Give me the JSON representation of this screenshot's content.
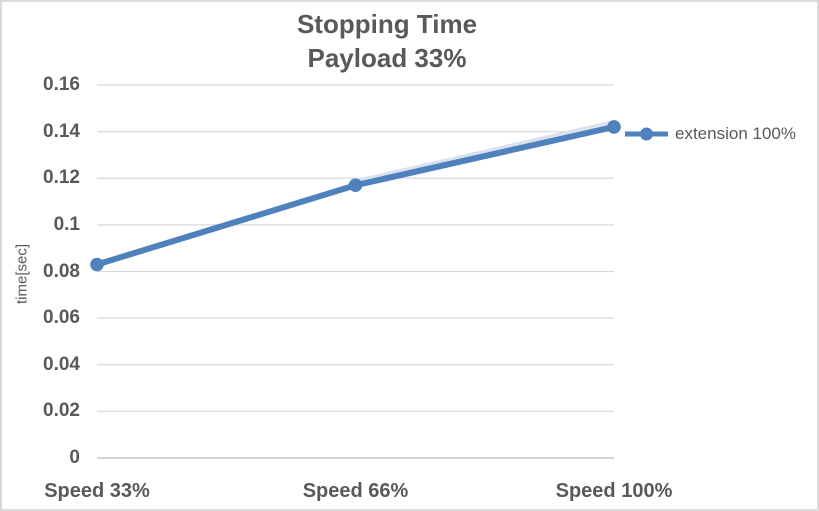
{
  "chart_data": {
    "type": "line",
    "title": "Stopping Time",
    "subtitle": "Payload 33%",
    "categories": [
      "Speed 33%",
      "Speed 66%",
      "Speed 100%"
    ],
    "series": [
      {
        "name": "extension 100%",
        "values": [
          0.083,
          0.117,
          0.142
        ]
      }
    ],
    "xlabel": "",
    "ylabel": "time[sec]",
    "ylim": [
      0,
      0.16
    ],
    "ytick_step": 0.02,
    "ytick_labels": [
      "0",
      "0.02",
      "0.04",
      "0.06",
      "0.08",
      "0.1",
      "0.12",
      "0.14",
      "0.16"
    ],
    "grid": true,
    "legend_position": "right",
    "marker": "circle"
  },
  "colors": {
    "series": "#4F81BD",
    "series_highlight": "#dae2f0",
    "text": "#595959",
    "gridline": "#d9d9d9",
    "axis_line": "#c6c6c6",
    "border": "#d9d9d9"
  }
}
